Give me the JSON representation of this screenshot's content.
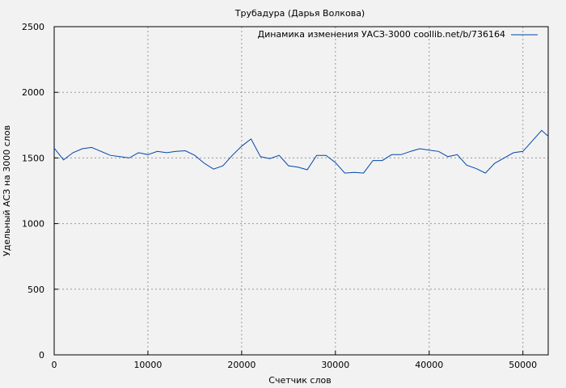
{
  "chart_data": {
    "type": "line",
    "title": "Трубадура (Дарья Волкова)",
    "xlabel": "Счетчик слов",
    "ylabel": "Удельный АСЗ на 3000 слов",
    "xlim": [
      0,
      52700
    ],
    "ylim": [
      0,
      2500
    ],
    "xticks": [
      0,
      10000,
      20000,
      30000,
      40000,
      50000
    ],
    "yticks": [
      0,
      500,
      1000,
      1500,
      2000,
      2500
    ],
    "grid": true,
    "legend_position": "top-right",
    "series": [
      {
        "name": "Динамика изменения УАСЗ-3000 coollib.net/b/736164",
        "color": "#0047ab",
        "x": [
          0,
          1000,
          2000,
          3000,
          4000,
          5000,
          6000,
          7000,
          8000,
          9000,
          10000,
          11000,
          12000,
          13000,
          14000,
          15000,
          16000,
          17000,
          18000,
          19000,
          20000,
          21000,
          22000,
          23000,
          24000,
          25000,
          26000,
          27000,
          28000,
          29000,
          30000,
          31000,
          32000,
          33000,
          34000,
          35000,
          36000,
          37000,
          38000,
          39000,
          40000,
          41000,
          42000,
          43000,
          44000,
          45000,
          46000,
          47000,
          48000,
          49000,
          50000,
          51000,
          52000,
          52700
        ],
        "y": [
          1575,
          1485,
          1540,
          1570,
          1580,
          1550,
          1520,
          1510,
          1500,
          1540,
          1525,
          1550,
          1540,
          1550,
          1555,
          1520,
          1460,
          1415,
          1440,
          1520,
          1590,
          1645,
          1510,
          1495,
          1520,
          1440,
          1430,
          1410,
          1520,
          1520,
          1465,
          1385,
          1390,
          1385,
          1480,
          1480,
          1525,
          1525,
          1550,
          1570,
          1560,
          1550,
          1510,
          1525,
          1445,
          1420,
          1385,
          1460,
          1500,
          1540,
          1550,
          1630,
          1710,
          1665
        ]
      }
    ]
  }
}
